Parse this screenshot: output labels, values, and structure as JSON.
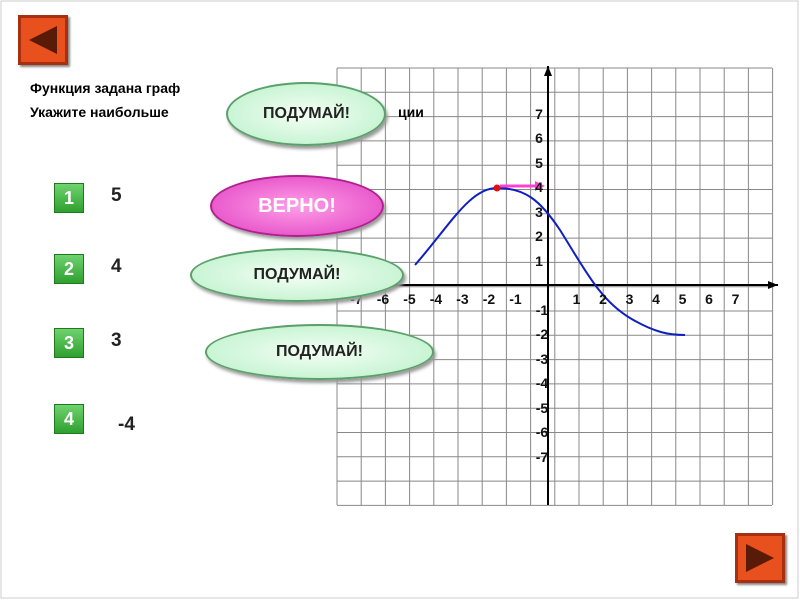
{
  "instruction": {
    "line1": "Функция задана граф",
    "line2": "Укажите наибольше",
    "line2_end": "ции"
  },
  "answers": [
    {
      "number": 1,
      "value": 5
    },
    {
      "number": 2,
      "value": 4
    },
    {
      "number": 3,
      "value": 3
    },
    {
      "number": 4,
      "value": -4
    }
  ],
  "feedback": [
    "ПОДУМАЙ!",
    "ВЕРНО!",
    "ПОДУМАЙ!",
    "ПОДУМАЙ!"
  ],
  "graph": {
    "x_labels": [
      -7,
      -6,
      -5,
      -4,
      -3,
      -2,
      -1,
      1,
      2,
      3,
      4,
      5,
      6,
      7
    ],
    "y_labels": [
      7,
      6,
      5,
      4,
      3,
      2,
      1,
      -1,
      -2,
      -3,
      -4,
      -5,
      -6,
      -7
    ]
  }
}
